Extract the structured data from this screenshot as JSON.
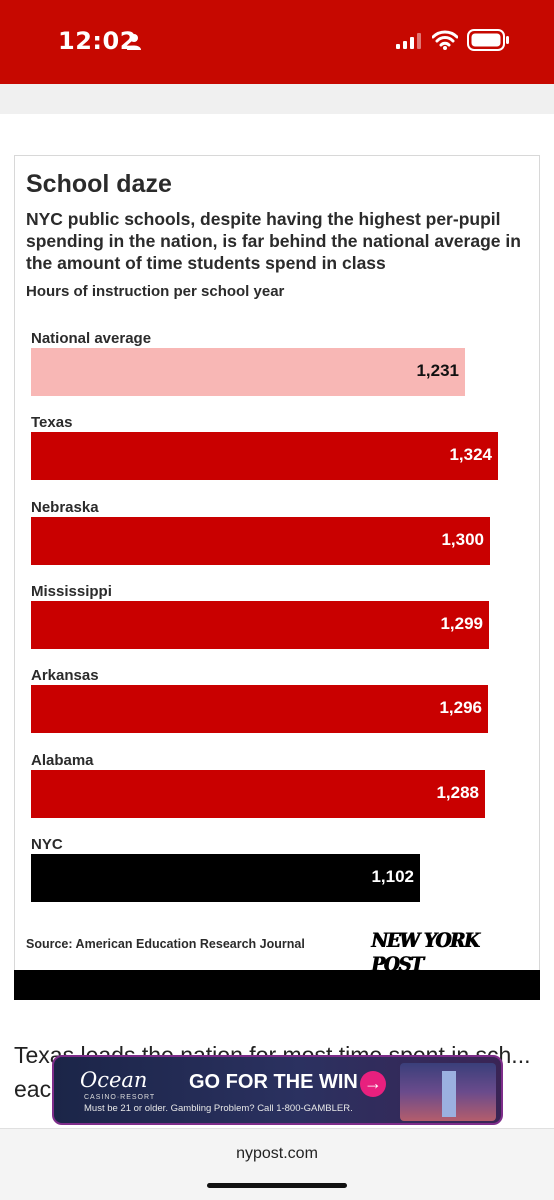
{
  "status_bar": {
    "time": "12:02",
    "bg_color": "#c60800"
  },
  "chart_data": {
    "type": "bar",
    "orientation": "horizontal",
    "title": "School daze",
    "subtitle": "NYC public schools, despite having the highest per-pupil spending in the nation, is far behind the national average in the amount of time students spend in class",
    "ylabel": "Hours of instruction per school year",
    "categories": [
      "National average",
      "Texas",
      "Nebraska",
      "Mississippi",
      "Arkansas",
      "Alabama",
      "NYC"
    ],
    "values": [
      1231,
      1324,
      1300,
      1299,
      1296,
      1288,
      1102
    ],
    "value_labels": [
      "1,231",
      "1,324",
      "1,300",
      "1,299",
      "1,296",
      "1,288",
      "1,102"
    ],
    "colors": [
      "#f8b7b5",
      "#c90000",
      "#c90000",
      "#c90000",
      "#c90000",
      "#c90000",
      "#000000"
    ],
    "source": "Source: American Education Research Journal"
  },
  "logo": "NEW YORK POST",
  "article": {
    "text": "Texas leads the nation for most time spent in sch... each"
  },
  "ad": {
    "brand": "Ocean",
    "brand_sub": "CASINO·RESORT",
    "headline": "GO FOR THE WIN",
    "disclaimer": "Must be 21 or older. Gambling Problem? Call 1-800-GAMBLER."
  },
  "url_bar": {
    "url": "nypost.com"
  }
}
